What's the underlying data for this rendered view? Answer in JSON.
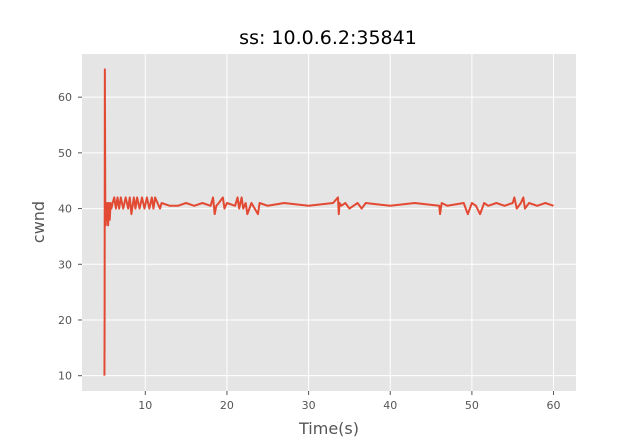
{
  "chart_data": {
    "type": "line",
    "title": "ss: 10.0.6.2:35841",
    "xlabel": "Time(s)",
    "ylabel": "cwnd",
    "xlim": [
      2.25,
      62.75
    ],
    "ylim": [
      7.25,
      67.75
    ],
    "xticks": [
      10,
      20,
      30,
      40,
      50,
      60
    ],
    "yticks": [
      10,
      20,
      30,
      40,
      50,
      60
    ],
    "grid": true,
    "background": "#E5E5E5",
    "grid_color": "#FFFFFF",
    "line_color": "#E24A33",
    "series": [
      {
        "x": [
          5.0,
          5.02,
          5.05,
          5.1,
          5.13,
          5.16,
          5.2,
          5.25,
          5.35,
          5.45,
          5.55,
          5.65,
          5.75,
          5.85,
          6.0,
          6.2,
          6.4,
          6.6,
          6.8,
          7.0,
          7.3,
          7.6,
          7.9,
          8.1,
          8.3,
          8.6,
          8.8,
          9.0,
          9.3,
          9.6,
          9.9,
          10.2,
          10.5,
          10.8,
          11.0,
          11.2,
          11.5,
          11.8,
          12.0,
          13.0,
          14.0,
          15.0,
          16.0,
          17.0,
          18.0,
          18.3,
          18.5,
          18.7,
          19.0,
          19.5,
          19.7,
          20.0,
          21.0,
          21.3,
          21.5,
          21.8,
          22.0,
          22.3,
          22.5,
          23.0,
          23.8,
          24.0,
          25.0,
          27.0,
          30.0,
          33.0,
          33.6,
          33.7,
          33.8,
          34.0,
          34.5,
          35.0,
          36.0,
          36.5,
          37.0,
          40.0,
          43.0,
          46.0,
          46.1,
          46.3,
          47.0,
          49.0,
          49.5,
          50.0,
          50.5,
          51.0,
          51.5,
          52.0,
          53.0,
          54.0,
          55.0,
          55.2,
          55.5,
          56.0,
          56.3,
          56.5,
          57.0,
          58.0,
          59.0,
          60.0
        ],
        "y": [
          10,
          21,
          65,
          41,
          41,
          37,
          41,
          38,
          41,
          37,
          41,
          38,
          41,
          40,
          41,
          42,
          40,
          42,
          40,
          42,
          40,
          42,
          40,
          42,
          39,
          42,
          40,
          42,
          40,
          42,
          40,
          42,
          40,
          42,
          40,
          42,
          41,
          40,
          41,
          40.5,
          40.5,
          41,
          40.5,
          41,
          40.5,
          42,
          39,
          40.5,
          41,
          42,
          40,
          41,
          40.5,
          42,
          40,
          42,
          40,
          41,
          39,
          41,
          39,
          41,
          40.5,
          41,
          40.5,
          41,
          42,
          39,
          41,
          40.5,
          41,
          40,
          41,
          40,
          41,
          40.5,
          41,
          40.5,
          39,
          41,
          40.5,
          41,
          39,
          41,
          40.5,
          39,
          41,
          40.5,
          41,
          40.5,
          41,
          42,
          40,
          41,
          42,
          40,
          41,
          40.5,
          41,
          40.5
        ]
      }
    ]
  }
}
